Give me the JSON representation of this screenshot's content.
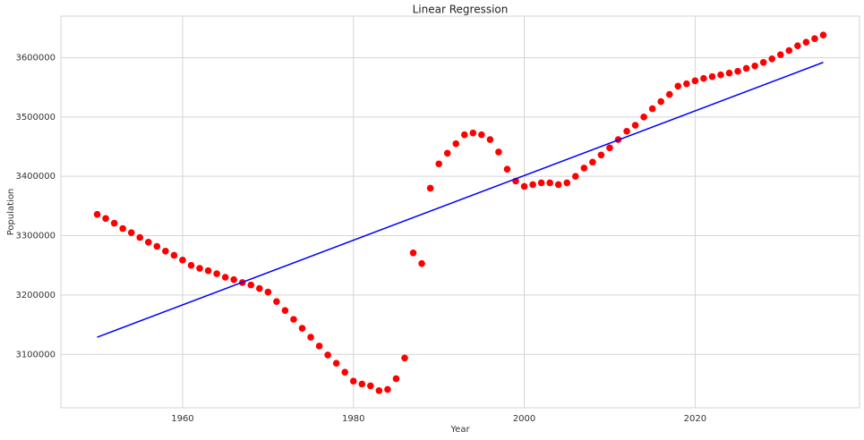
{
  "chart_data": {
    "type": "scatter",
    "title": "Linear Regression",
    "x_label": "Year",
    "y_label": "Population",
    "xlim": [
      1945.75,
      2039.25
    ],
    "ylim": [
      3010000,
      3670000
    ],
    "xticks": [
      1960,
      1980,
      2000,
      2020
    ],
    "yticks": [
      3100000,
      3200000,
      3300000,
      3400000,
      3500000,
      3600000
    ],
    "grid": true,
    "series": [
      {
        "type": "scatter",
        "color": "#ff0000",
        "x": [
          1950,
          1951,
          1952,
          1953,
          1954,
          1955,
          1956,
          1957,
          1958,
          1959,
          1960,
          1961,
          1962,
          1963,
          1964,
          1965,
          1966,
          1967,
          1968,
          1969,
          1970,
          1971,
          1972,
          1973,
          1974,
          1975,
          1976,
          1977,
          1978,
          1979,
          1980,
          1981,
          1982,
          1983,
          1984,
          1985,
          1986,
          1987,
          1988,
          1989,
          1990,
          1991,
          1992,
          1993,
          1994,
          1995,
          1996,
          1997,
          1998,
          1999,
          2000,
          2001,
          2002,
          2003,
          2004,
          2005,
          2006,
          2007,
          2008,
          2009,
          2010,
          2011,
          2012,
          2013,
          2014,
          2015,
          2016,
          2017,
          2018,
          2019,
          2020,
          2021,
          2022,
          2023,
          2024,
          2025,
          2026,
          2027,
          2028,
          2029,
          2030,
          2031,
          2032,
          2033,
          2034,
          2035
        ],
        "values": [
          3336000,
          3329000,
          3321000,
          3312000,
          3305000,
          3297000,
          3289000,
          3282000,
          3274000,
          3267000,
          3259000,
          3250000,
          3245000,
          3241000,
          3236000,
          3230000,
          3226000,
          3221000,
          3217000,
          3211000,
          3205000,
          3189000,
          3174000,
          3159000,
          3144000,
          3129000,
          3114000,
          3099000,
          3085000,
          3070000,
          3055000,
          3050000,
          3047000,
          3039000,
          3041000,
          3059000,
          3094000,
          3271000,
          3253000,
          3380000,
          3421000,
          3439000,
          3455000,
          3470000,
          3473000,
          3470000,
          3462000,
          3441000,
          3412000,
          3392000,
          3383000,
          3386000,
          3389000,
          3389000,
          3386000,
          3389000,
          3400000,
          3414000,
          3424000,
          3436000,
          3448000,
          3462000,
          3476000,
          3486000,
          3500000,
          3514000,
          3526000,
          3538000,
          3552000,
          3556000,
          3561000,
          3565000,
          3568000,
          3571000,
          3574000,
          3577000,
          3582000,
          3586000,
          3592000,
          3598000,
          3605000,
          3612000,
          3620000,
          3626000,
          3632000,
          3638000
        ]
      },
      {
        "type": "line",
        "color": "#0000ff",
        "x": [
          1950,
          2035
        ],
        "values": [
          3129000,
          3592000
        ]
      }
    ]
  }
}
